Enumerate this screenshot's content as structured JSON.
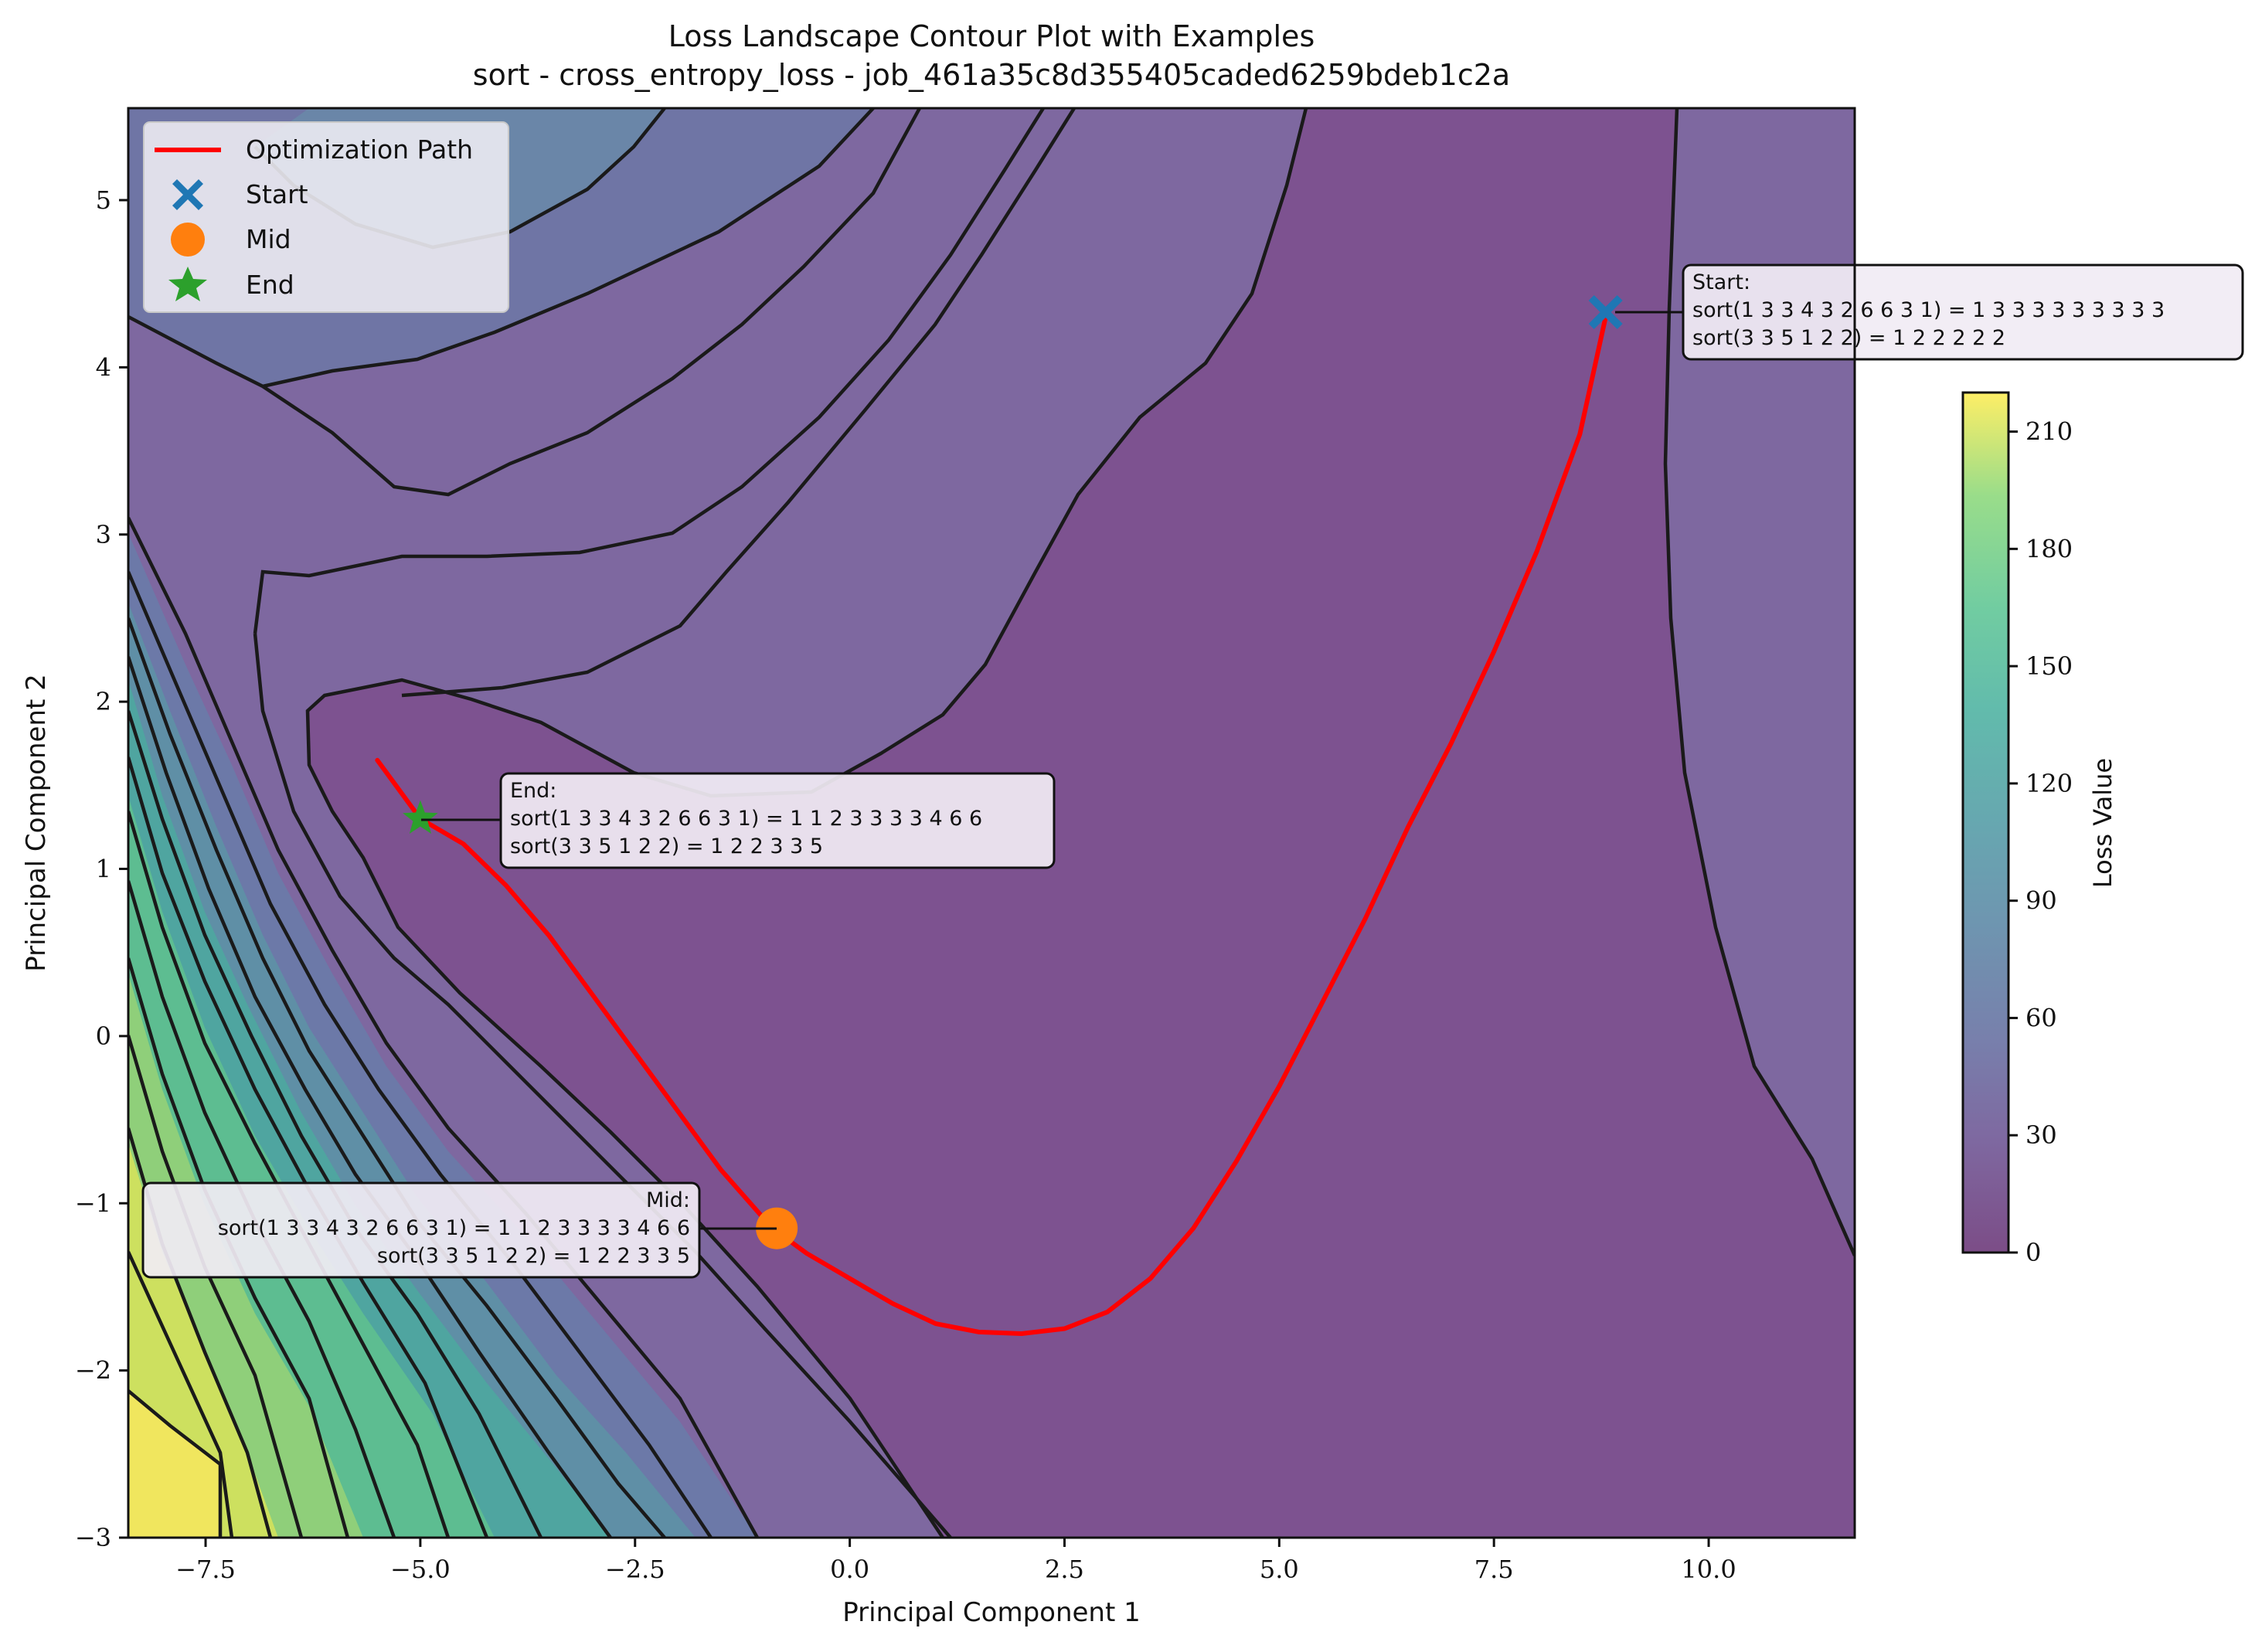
{
  "chart_data": {
    "type": "contour",
    "title_line1": "Loss Landscape Contour Plot with Examples",
    "title_line2": "sort - cross_entropy_loss - job_461a35c8d355405caded6259bdeb1c2a",
    "xlabel": "Principal Component 1",
    "ylabel": "Principal Component 2",
    "xlim": [
      -8.4,
      11.7
    ],
    "ylim": [
      -3.0,
      5.55
    ],
    "xticks": [
      -7.5,
      -5.0,
      -2.5,
      0.0,
      2.5,
      5.0,
      7.5,
      10.0
    ],
    "xtick_labels": [
      "−7.5",
      "−5.0",
      "−2.5",
      "0.0",
      "2.5",
      "5.0",
      "7.5",
      "10.0"
    ],
    "yticks": [
      -3,
      -2,
      -1,
      0,
      1,
      2,
      3,
      4,
      5
    ],
    "ytick_labels": [
      "−3",
      "−2",
      "−1",
      "0",
      "1",
      "2",
      "3",
      "4",
      "5"
    ],
    "colorbar": {
      "label": "Loss Value",
      "range": [
        0,
        220
      ],
      "ticks": [
        0,
        30,
        60,
        90,
        120,
        150,
        180,
        210
      ],
      "tick_labels": [
        "0",
        "30",
        "60",
        "90",
        "120",
        "150",
        "180",
        "210"
      ],
      "colormap": "viridis"
    },
    "legend": {
      "position": "upper-left",
      "entries": [
        {
          "label": "Optimization Path",
          "marker": "line",
          "color": "#ff0000"
        },
        {
          "label": "Start",
          "marker": "x",
          "color": "#1f77b4"
        },
        {
          "label": "Mid",
          "marker": "circle",
          "color": "#ff7f0e"
        },
        {
          "label": "End",
          "marker": "star",
          "color": "#2ca02c"
        }
      ]
    },
    "path": {
      "name": "Optimization Path",
      "color": "#ff0000",
      "x": [
        8.8,
        8.5,
        8.0,
        7.5,
        7.0,
        6.5,
        6.0,
        5.5,
        5.0,
        4.5,
        4.0,
        3.5,
        3.0,
        2.5,
        2.0,
        1.5,
        1.0,
        0.5,
        0.0,
        -0.5,
        -0.9,
        -1.5,
        -2.0,
        -2.5,
        -3.0,
        -3.5,
        -4.0,
        -4.5,
        -5.0,
        -5.5
      ],
      "y": [
        4.3,
        3.6,
        2.9,
        2.3,
        1.75,
        1.25,
        0.7,
        0.2,
        -0.3,
        -0.75,
        -1.15,
        -1.45,
        -1.65,
        -1.75,
        -1.78,
        -1.77,
        -1.72,
        -1.6,
        -1.45,
        -1.3,
        -1.15,
        -0.8,
        -0.45,
        -0.1,
        0.25,
        0.6,
        0.9,
        1.15,
        1.3,
        1.65
      ]
    },
    "markers": [
      {
        "name": "Start",
        "x": 8.8,
        "y": 4.33,
        "color": "#1f77b4"
      },
      {
        "name": "Mid",
        "x": -0.85,
        "y": -1.15,
        "color": "#ff7f0e"
      },
      {
        "name": "End",
        "x": -5.0,
        "y": 1.3,
        "color": "#2ca02c"
      }
    ],
    "annotations": [
      {
        "name": "Start",
        "lines": [
          "Start:",
          "sort(1 3 3 4 3 2 6 6 3 1) = 1 3 3 3 3 3 3 3 3 3",
          "sort(3 3 5 1 2 2) = 1 2 2 2 2 2"
        ]
      },
      {
        "name": "End",
        "lines": [
          "End:",
          "sort(1 3 3 4 3 2 6 6 3 1) = 1 1 2 3 3 3 3 4 6 6",
          "sort(3 3 5 1 2 2) = 1 2 2 3 3 5"
        ]
      },
      {
        "name": "Mid",
        "lines": [
          "Mid:",
          "sort(1 3 3 4 3 2 6 6 3 1) = 1 1 2 3 3 3 3 4 6 6",
          "sort(3 3 5 1 2 2) = 1 2 2 3 3 5"
        ]
      }
    ]
  }
}
